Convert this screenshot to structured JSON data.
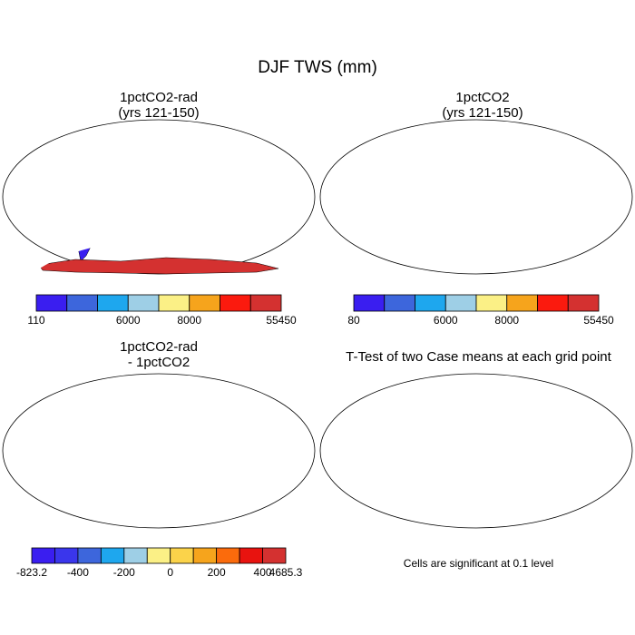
{
  "title": "DJF TWS (mm)",
  "panels": {
    "a": {
      "title1": "1pctCO2-rad",
      "title2": "(yrs 121-150)"
    },
    "b": {
      "title1": "1pctCO2",
      "title2": "(yrs 121-150)"
    },
    "c": {
      "title1": "1pctCO2-rad",
      "title2": "- 1pctCO2"
    },
    "d": {
      "title1": "T-Test of two Case means at each grid point",
      "note": "Cells are significant at 0.1 level"
    }
  },
  "colorbars": {
    "a": {
      "colors": [
        "#3a1ef0",
        "#3d66dc",
        "#1ea7ee",
        "#9ecfe6",
        "#fbf086",
        "#f6a41c",
        "#fb1a0e",
        "#d43130"
      ],
      "labels": [
        {
          "text": "110",
          "at": 0
        },
        {
          "text": "6000",
          "at": 3
        },
        {
          "text": "8000",
          "at": 5
        },
        {
          "text": "55450",
          "at": 8
        }
      ]
    },
    "b": {
      "colors": [
        "#3a1ef0",
        "#3d66dc",
        "#1ea7ee",
        "#9ecfe6",
        "#fbf086",
        "#f6a41c",
        "#fb1a0e",
        "#d43130"
      ],
      "labels": [
        {
          "text": "80",
          "at": 0
        },
        {
          "text": "6000",
          "at": 3
        },
        {
          "text": "8000",
          "at": 5
        },
        {
          "text": "55450",
          "at": 8
        }
      ]
    },
    "c": {
      "colors": [
        "#3a1ef0",
        "#3a36ec",
        "#3d66dc",
        "#1ea7ee",
        "#9ecfe6",
        "#fbf086",
        "#fbd34a",
        "#f6a41c",
        "#fb6b0c",
        "#e8130f",
        "#d43130"
      ],
      "labels": [
        {
          "text": "-823.2",
          "at": 0
        },
        {
          "text": "-400",
          "at": 2
        },
        {
          "text": "-200",
          "at": 4
        },
        {
          "text": "0",
          "at": 6
        },
        {
          "text": "200",
          "at": 8
        },
        {
          "text": "400",
          "at": 10
        },
        {
          "text": "4685.3",
          "at": 11
        }
      ]
    }
  },
  "map_colors": {
    "ocean": "#ffffff",
    "land_low": "#3a1ef0",
    "ice_high": "#d43130",
    "diff_base": "#9ecfe6",
    "diff_pos": "#fbf086",
    "diff_strong": "#f6a41c",
    "diff_neg": "#3d66dc",
    "signif": "#ee0000"
  }
}
